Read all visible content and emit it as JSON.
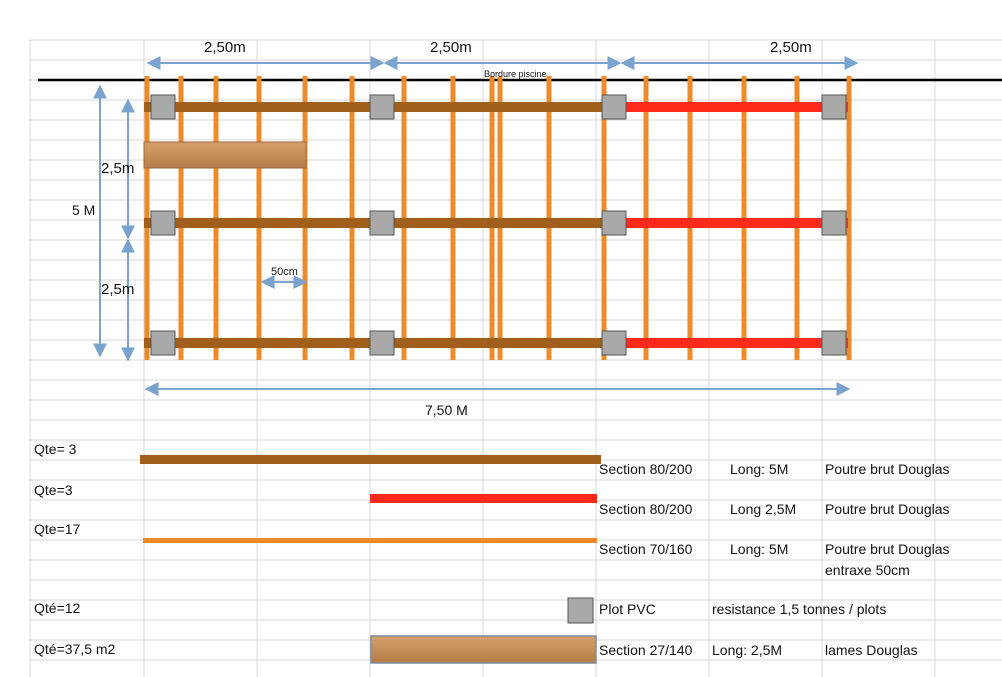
{
  "plan": {
    "dimensions": {
      "top_segment_1": "2,50m",
      "top_segment_2": "2,50m",
      "top_segment_3": "2,50m",
      "edge_label": "Bordure piscine",
      "left_total": "5 M",
      "left_upper": "2,5m",
      "left_lower": "2,5m",
      "spacing": "50cm",
      "bottom_total": "7,50 M"
    },
    "colors": {
      "beam_brown": "#a0601c",
      "beam_red": "#ff2a1a",
      "joist_orange": "#ef8a2a",
      "plot_gray": "#a9a9a9",
      "arrow_blue": "#7aa3cf",
      "deck_board": "#c58f5a"
    }
  },
  "legend": [
    {
      "qty": "Qte= 3",
      "section": "Section 80/200",
      "length": "Long: 5M",
      "desc": "Poutre brut Douglas",
      "desc2": ""
    },
    {
      "qty": "Qte=3",
      "section": "Section 80/200",
      "length": "Long 2,5M",
      "desc": "Poutre brut Douglas",
      "desc2": ""
    },
    {
      "qty": "Qte=17",
      "section": "Section 70/160",
      "length": "Long: 5M",
      "desc": "Poutre brut Douglas",
      "desc2": "entraxe 50cm"
    },
    {
      "qty": "Qté=12",
      "section": "Plot PVC",
      "length": "",
      "desc": "resistance 1,5 tonnes / plots",
      "desc2": ""
    },
    {
      "qty": "Qté=37,5 m2",
      "section": "Section 27/140",
      "length": "Long: 2,5M",
      "desc": "lames Douglas",
      "desc2": ""
    }
  ]
}
